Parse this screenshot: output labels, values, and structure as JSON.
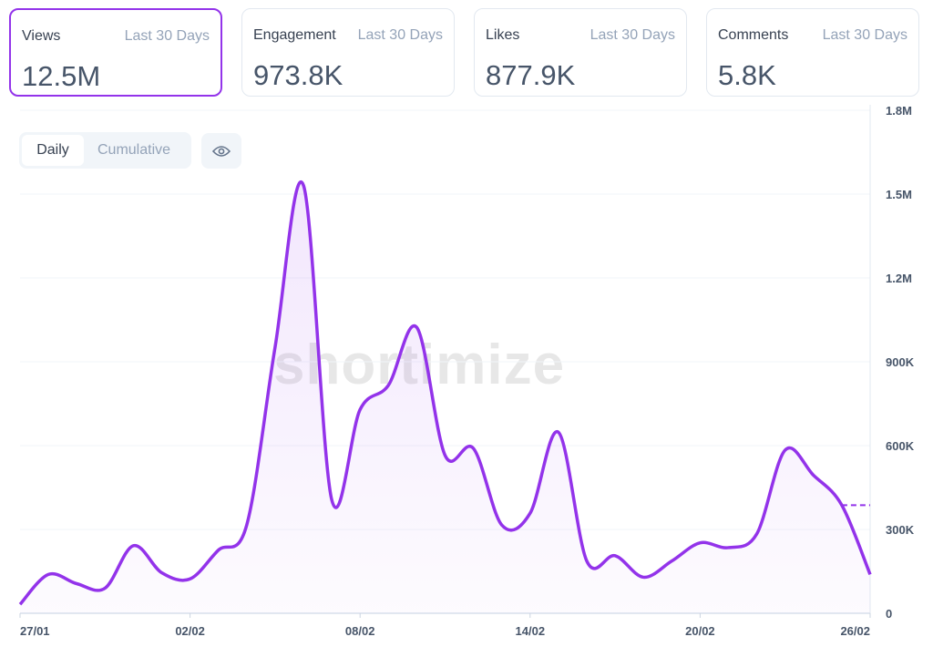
{
  "cards": [
    {
      "title": "Views",
      "period": "Last 30 Days",
      "value": "12.5M",
      "active": true
    },
    {
      "title": "Engagement",
      "period": "Last 30 Days",
      "value": "973.8K"
    },
    {
      "title": "Likes",
      "period": "Last 30 Days",
      "value": "877.9K"
    },
    {
      "title": "Comments",
      "period": "Last 30 Days",
      "value": "5.8K"
    }
  ],
  "toggle": {
    "daily": "Daily",
    "cumulative": "Cumulative",
    "selected": "Daily"
  },
  "watermark": "shortimize",
  "colors": {
    "accent": "#9333ea"
  },
  "chart_data": {
    "type": "area",
    "title": "Views (Daily)",
    "x_ticks": [
      "27/01",
      "02/02",
      "08/02",
      "14/02",
      "20/02",
      "26/02"
    ],
    "y_ticks": [
      "0",
      "300K",
      "600K",
      "900K",
      "1.2M",
      "1.5M",
      "1.8M"
    ],
    "ylim": [
      0,
      1800000
    ],
    "x_days": 30,
    "values": [
      32000,
      139000,
      106000,
      90000,
      242000,
      145000,
      123000,
      226000,
      316000,
      952000,
      1532000,
      406000,
      729000,
      816000,
      1023000,
      565000,
      590000,
      316000,
      358000,
      648000,
      187000,
      206000,
      129000,
      187000,
      252000,
      235000,
      284000,
      584000,
      494000,
      387000,
      139000
    ],
    "projection_value": 387000,
    "grid": true
  }
}
